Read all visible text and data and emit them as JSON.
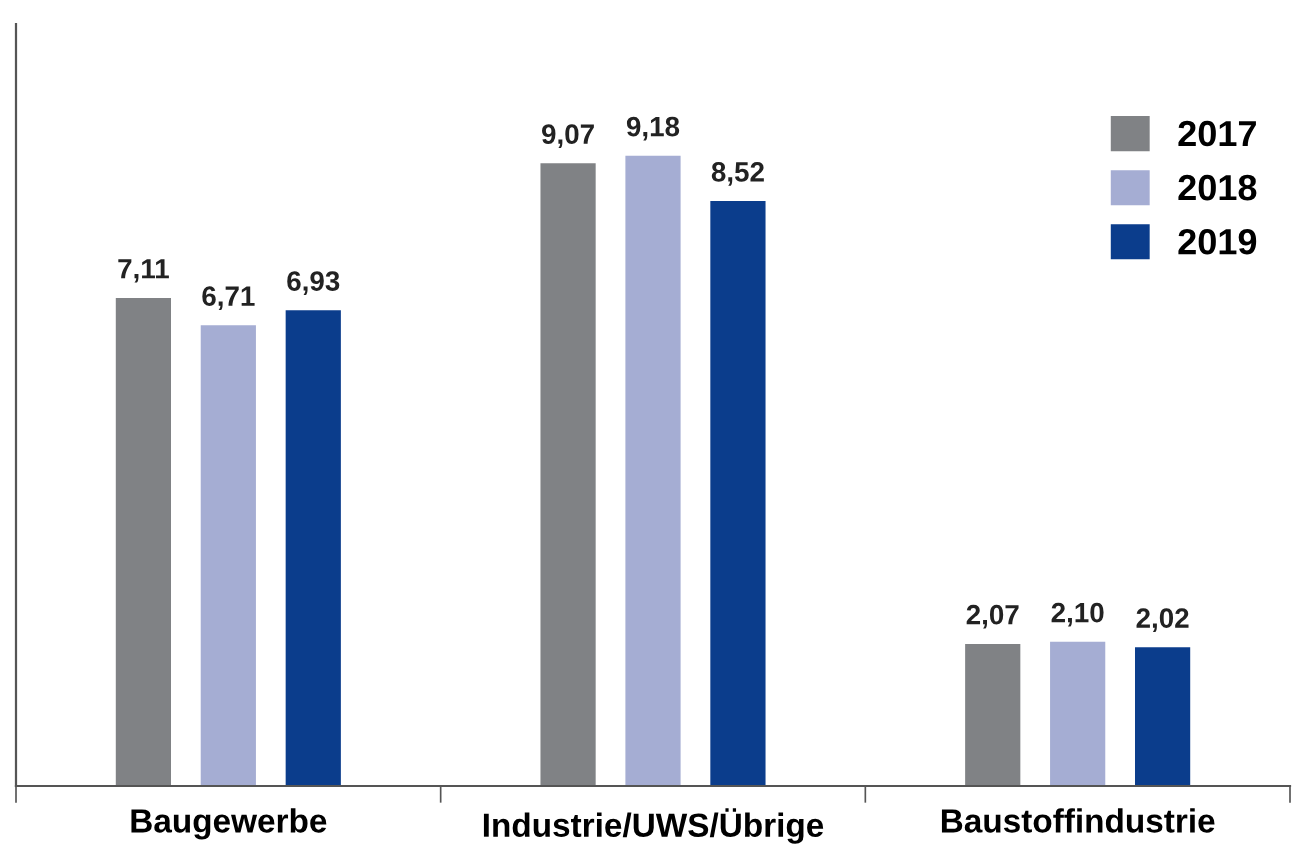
{
  "chart_data": {
    "type": "bar",
    "categories": [
      "Baugewerbe",
      "Industrie/UWS/Übrige",
      "Baustoffindustrie"
    ],
    "series": [
      {
        "name": "2017",
        "color": "#808285",
        "values": [
          7.11,
          9.07,
          2.07
        ],
        "value_labels": [
          "7,11",
          "9,07",
          "2,07"
        ]
      },
      {
        "name": "2018",
        "color": "#a5add3",
        "values": [
          6.71,
          9.18,
          2.1
        ],
        "value_labels": [
          "6,71",
          "9,18",
          "2,10"
        ]
      },
      {
        "name": "2019",
        "color": "#0b3d8c",
        "values": [
          6.93,
          8.52,
          2.02
        ],
        "value_labels": [
          "6,93",
          "8,52",
          "2,02"
        ]
      }
    ],
    "ylim": [
      0,
      11.1
    ],
    "tick_labels": "x",
    "legend": "top right",
    "grid": false
  }
}
